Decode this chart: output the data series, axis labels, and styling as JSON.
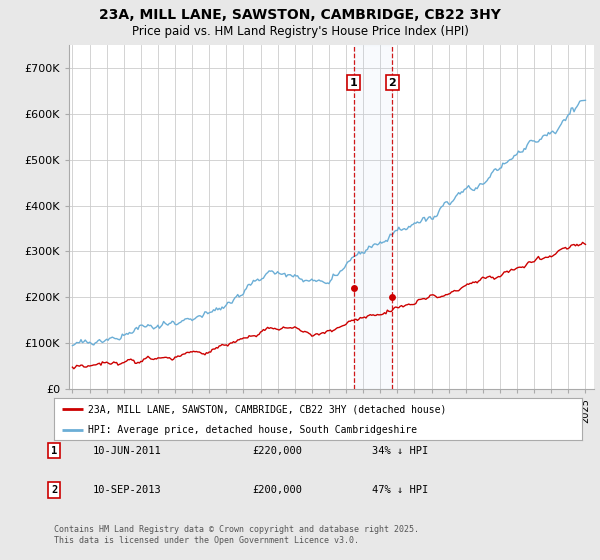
{
  "title_line1": "23A, MILL LANE, SAWSTON, CAMBRIDGE, CB22 3HY",
  "title_line2": "Price paid vs. HM Land Registry's House Price Index (HPI)",
  "ylim": [
    0,
    750000
  ],
  "yticks": [
    0,
    100000,
    200000,
    300000,
    400000,
    500000,
    600000,
    700000
  ],
  "ytick_labels": [
    "£0",
    "£100K",
    "£200K",
    "£300K",
    "£400K",
    "£500K",
    "£600K",
    "£700K"
  ],
  "x_start_year": 1995,
  "x_end_year": 2025,
  "hpi_color": "#6baed6",
  "price_color": "#cc0000",
  "fig_bg_color": "#e8e8e8",
  "chart_bg_color": "#ffffff",
  "grid_color": "#cccccc",
  "annotation1": {
    "label": "1",
    "date_str": "10-JUN-2011",
    "price": 220000,
    "pct": "34% ↓ HPI",
    "year": 2011.45
  },
  "annotation2": {
    "label": "2",
    "date_str": "10-SEP-2013",
    "price": 200000,
    "pct": "47% ↓ HPI",
    "year": 2013.7
  },
  "legend_line1": "23A, MILL LANE, SAWSTON, CAMBRIDGE, CB22 3HY (detached house)",
  "legend_line2": "HPI: Average price, detached house, South Cambridgeshire",
  "footnote": "Contains HM Land Registry data © Crown copyright and database right 2025.\nThis data is licensed under the Open Government Licence v3.0."
}
